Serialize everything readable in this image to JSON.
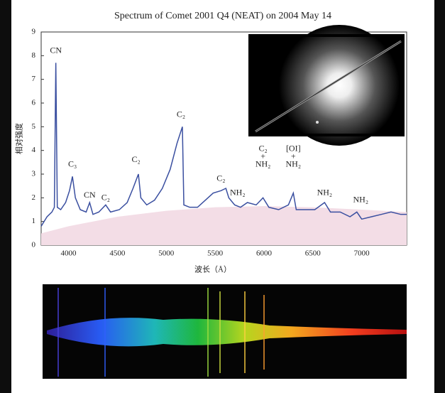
{
  "chart_data": {
    "type": "line",
    "title": "Spectrum of Comet 2001 Q4 (NEAT) on 2004 May 14",
    "x_label": "波长（Å）",
    "y_label": "相对强度",
    "xlim": [
      3720,
      7460
    ],
    "ylim": [
      0,
      9
    ],
    "xticks": [
      4000,
      4500,
      5000,
      5500,
      6000,
      6500,
      7000
    ],
    "yticks": [
      0,
      1,
      2,
      3,
      4,
      5,
      6,
      7,
      8,
      9
    ],
    "x": [
      3720,
      3780,
      3830,
      3855,
      3870,
      3885,
      3920,
      3970,
      4010,
      4040,
      4070,
      4120,
      4180,
      4216,
      4250,
      4310,
      4380,
      4430,
      4520,
      4600,
      4660,
      4715,
      4740,
      4800,
      4880,
      4960,
      5040,
      5110,
      5165,
      5180,
      5240,
      5320,
      5400,
      5480,
      5560,
      5610,
      5640,
      5700,
      5760,
      5830,
      5920,
      5990,
      6050,
      6150,
      6250,
      6300,
      6330,
      6420,
      6520,
      6620,
      6680,
      6780,
      6880,
      6950,
      7000,
      7100,
      7200,
      7300,
      7400,
      7460
    ],
    "series": [
      {
        "color": "#3a4fa0",
        "values": [
          0.8,
          1.2,
          1.4,
          1.6,
          7.7,
          1.6,
          1.5,
          1.8,
          2.3,
          2.9,
          2.0,
          1.5,
          1.4,
          1.8,
          1.3,
          1.4,
          1.7,
          1.4,
          1.5,
          1.8,
          2.4,
          3.0,
          2.0,
          1.7,
          1.9,
          2.4,
          3.2,
          4.3,
          5.0,
          1.7,
          1.6,
          1.6,
          1.9,
          2.2,
          2.3,
          2.4,
          2.0,
          1.7,
          1.6,
          1.8,
          1.7,
          2.0,
          1.6,
          1.5,
          1.7,
          2.2,
          1.5,
          1.5,
          1.5,
          1.8,
          1.4,
          1.4,
          1.2,
          1.4,
          1.1,
          1.2,
          1.3,
          1.4,
          1.3,
          1.3
        ]
      },
      {
        "color": "#f3dde6",
        "area": true,
        "x": [
          3720,
          4000,
          4500,
          5000,
          5500,
          6000,
          6500,
          7000,
          7460
        ],
        "values": [
          0.5,
          0.8,
          1.2,
          1.45,
          1.6,
          1.65,
          1.6,
          1.5,
          1.4
        ]
      }
    ],
    "annotations": [
      {
        "lines": [
          "CN"
        ],
        "x": 3870,
        "y": 8.2
      },
      {
        "lines": [
          "C₃"
        ],
        "x": 4040,
        "y": 3.4
      },
      {
        "lines": [
          "CN"
        ],
        "x": 4216,
        "y": 2.1
      },
      {
        "lines": [
          "C₂"
        ],
        "x": 4380,
        "y": 2.0
      },
      {
        "lines": [
          "C₂"
        ],
        "x": 4690,
        "y": 3.6
      },
      {
        "lines": [
          "C₂"
        ],
        "x": 5150,
        "y": 5.5
      },
      {
        "lines": [
          "C₂"
        ],
        "x": 5560,
        "y": 2.8
      },
      {
        "lines": [
          "NH₂"
        ],
        "x": 5730,
        "y": 2.2
      },
      {
        "lines": [
          "C₂",
          "+",
          "NH₂"
        ],
        "x": 5990,
        "y": 3.4
      },
      {
        "lines": [
          "[OI]",
          "+",
          "NH₂"
        ],
        "x": 6300,
        "y": 3.4
      },
      {
        "lines": [
          "NH₂"
        ],
        "x": 6620,
        "y": 2.2
      },
      {
        "lines": [
          "NH₂"
        ],
        "x": 6990,
        "y": 1.9
      }
    ]
  }
}
